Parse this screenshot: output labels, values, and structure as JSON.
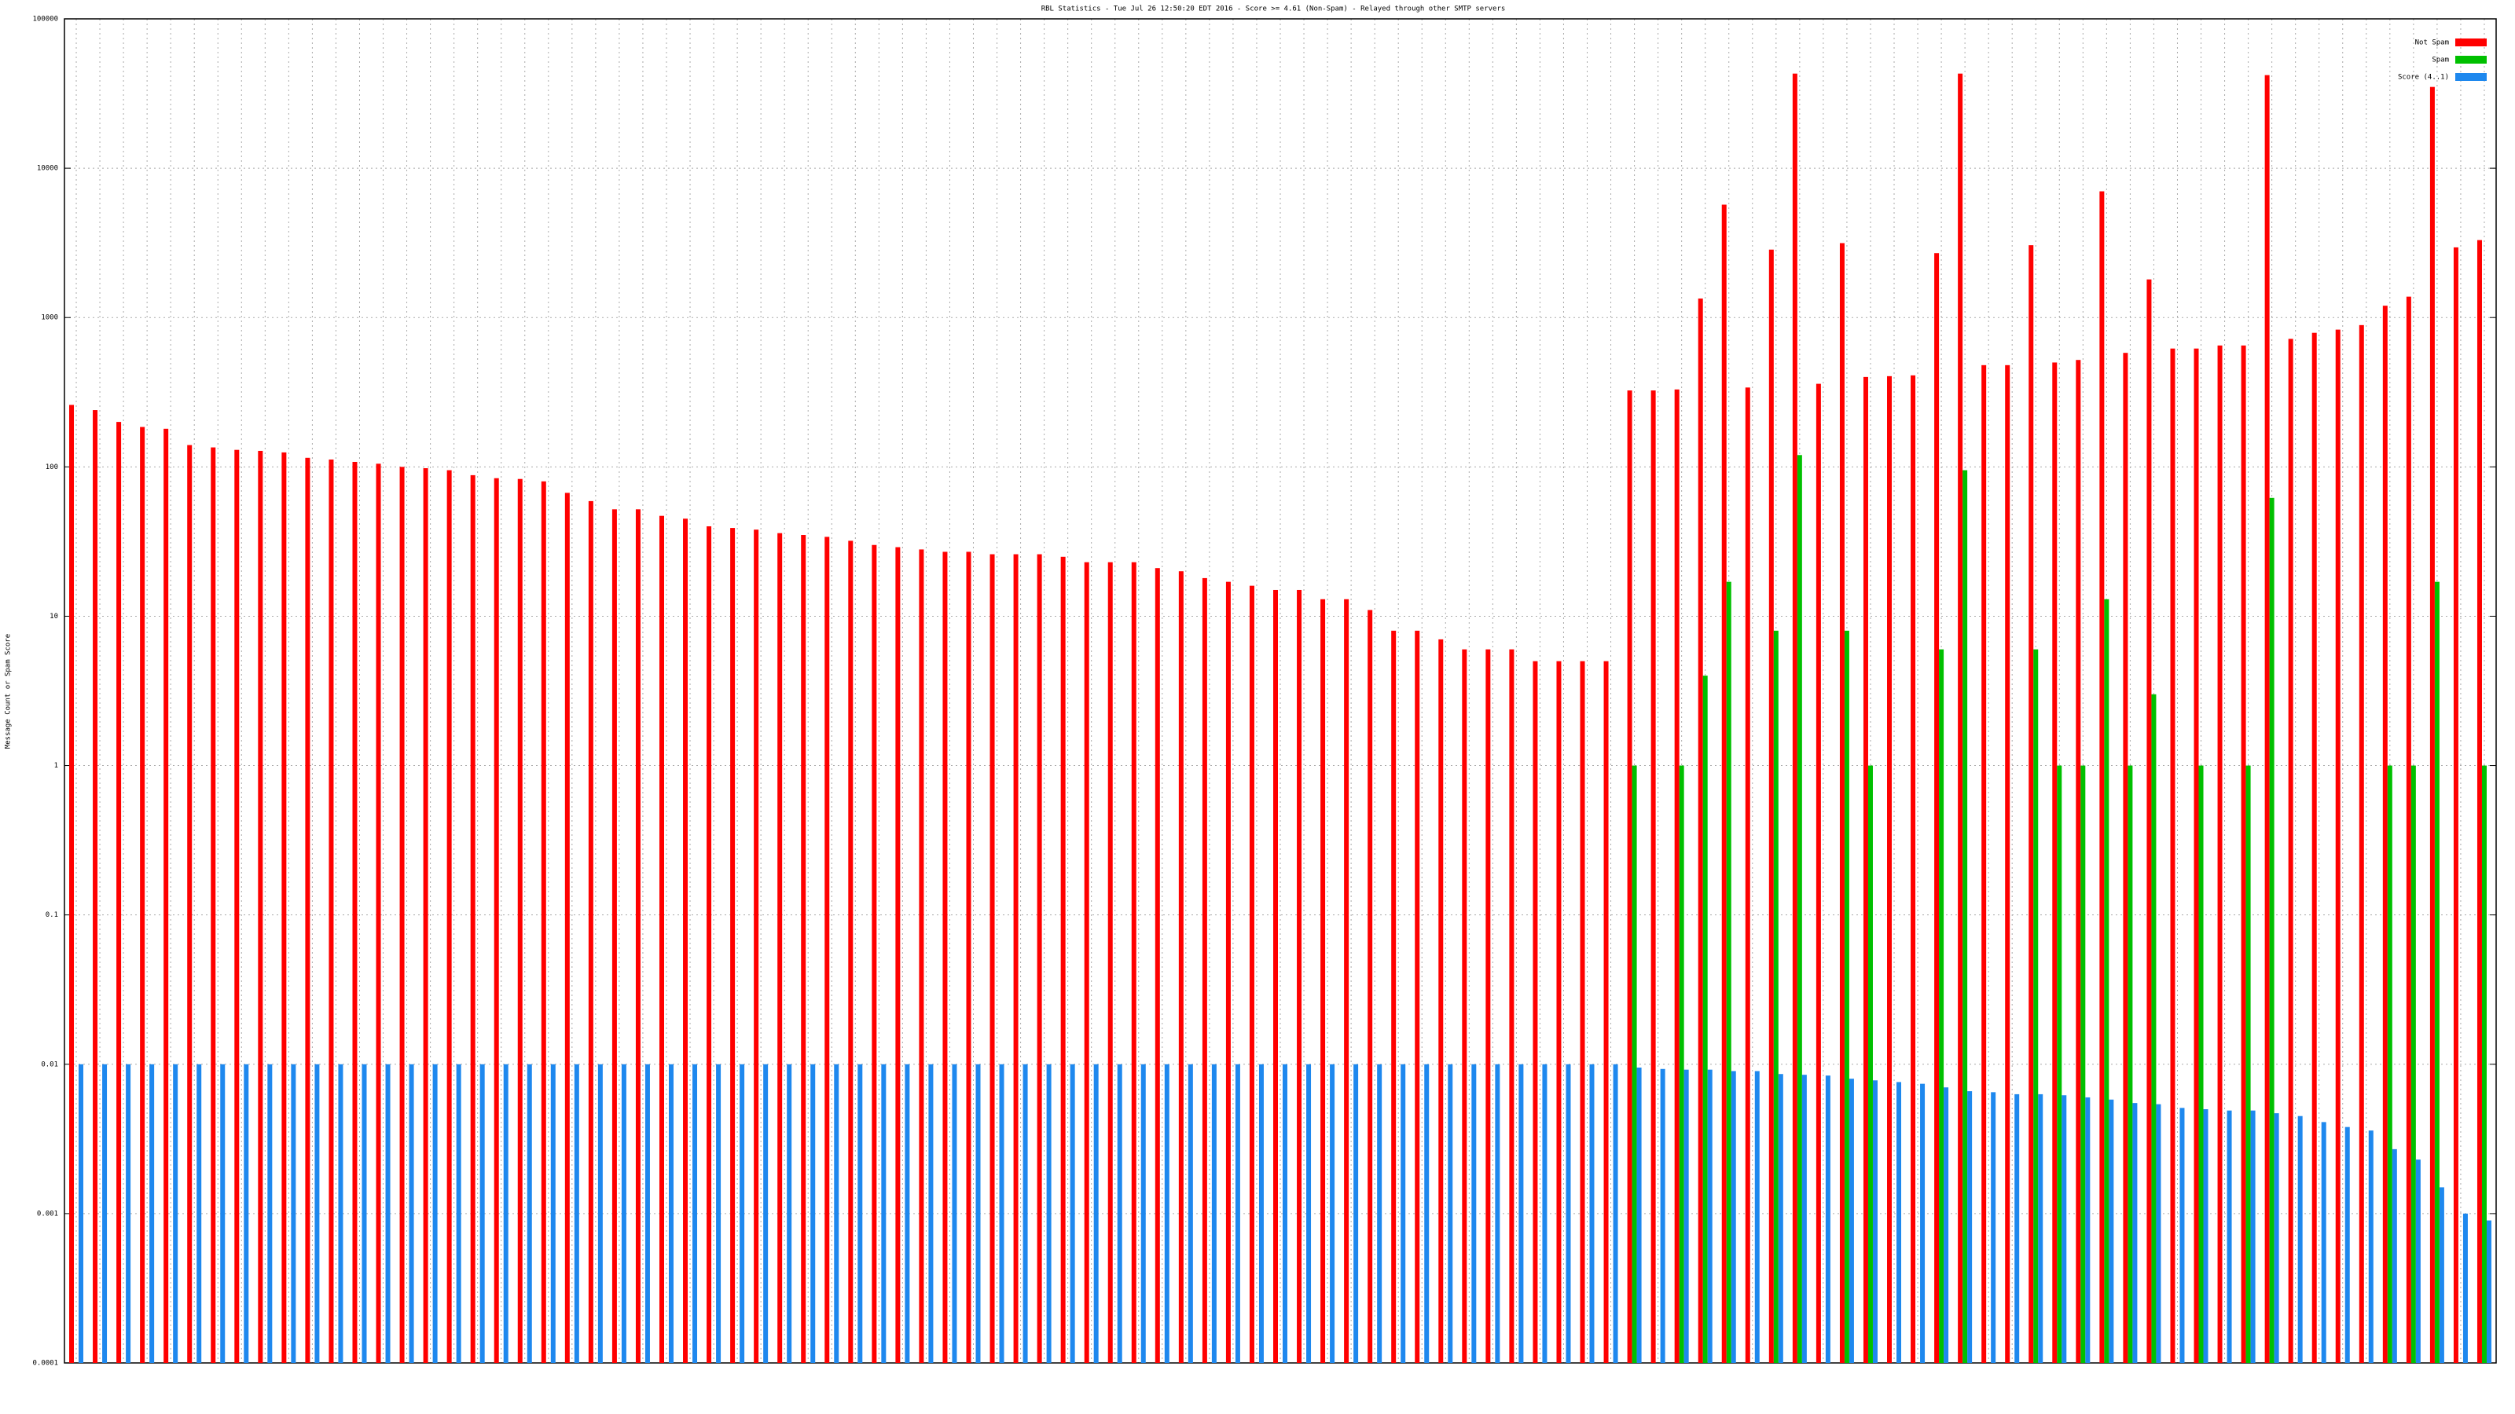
{
  "chart_data": {
    "type": "bar",
    "title": "RBL Statistics - Tue Jul 26 12:50:20 EDT 2016 - Score >= 4.61 (Non-Spam) - Relayed through other SMTP servers",
    "y_label": "Message Count or Spam Score",
    "log_y": true,
    "grid": true,
    "legend": "top-right",
    "categories": [
      null,
      null,
      null,
      null,
      null,
      null,
      null,
      null,
      null,
      null,
      null,
      null,
      null,
      null,
      null,
      null,
      null,
      null,
      null,
      null,
      null,
      null,
      null,
      null,
      null,
      null,
      null,
      null,
      null,
      null,
      null,
      null,
      null,
      null,
      null,
      null,
      null,
      null,
      null,
      null,
      null,
      null,
      null,
      null,
      null,
      null,
      null,
      null,
      null,
      null,
      null,
      null,
      null,
      null,
      null,
      null,
      null,
      null,
      null,
      null,
      null,
      null,
      null,
      null,
      null,
      null,
      null,
      null,
      null,
      null,
      null,
      null,
      null,
      null,
      null,
      null,
      null,
      null,
      null,
      null,
      null,
      null,
      null,
      null,
      null,
      null,
      null,
      null,
      null,
      null,
      null,
      null,
      null,
      null,
      null,
      null,
      null,
      null,
      null,
      null,
      null,
      null,
      null
    ],
    "series": [
      {
        "name": "Not Spam",
        "color": "#ff0000",
        "values": [
          260,
          240,
          200,
          185,
          180,
          140,
          135,
          130,
          128,
          125,
          115,
          112,
          108,
          105,
          100,
          98,
          95,
          88,
          84,
          83,
          80,
          67,
          59,
          52,
          52,
          47,
          45,
          40,
          39,
          38,
          36,
          35,
          34,
          32,
          30,
          29,
          28,
          27,
          27,
          26,
          26,
          26,
          25,
          23,
          23,
          23,
          21,
          20,
          18,
          17,
          16,
          15,
          15,
          13,
          13,
          11,
          8,
          8,
          7,
          6,
          6,
          6,
          5,
          5,
          5,
          5,
          325,
          325,
          330,
          1340,
          5700,
          340,
          2850,
          43000,
          360,
          3150,
          400,
          405,
          410,
          2700,
          43000,
          480,
          480,
          3050,
          500,
          520,
          7000,
          580,
          1800,
          620,
          620,
          650,
          650,
          42000,
          720,
          790,
          830,
          890,
          1200,
          1380,
          35000,
          2950,
          3300
        ]
      },
      {
        "name": "Spam",
        "color": "#00c000",
        "values": [
          null,
          null,
          null,
          null,
          null,
          null,
          null,
          null,
          null,
          null,
          null,
          null,
          null,
          null,
          null,
          null,
          null,
          null,
          null,
          null,
          null,
          null,
          null,
          null,
          null,
          null,
          null,
          null,
          null,
          null,
          null,
          null,
          null,
          null,
          null,
          null,
          null,
          null,
          null,
          null,
          null,
          null,
          null,
          null,
          null,
          null,
          null,
          null,
          null,
          null,
          null,
          null,
          null,
          null,
          null,
          null,
          null,
          null,
          null,
          null,
          null,
          null,
          null,
          null,
          null,
          null,
          1,
          null,
          1,
          4,
          17,
          null,
          8,
          120,
          null,
          8,
          1,
          null,
          null,
          6,
          95,
          null,
          null,
          6,
          1,
          1,
          13,
          1,
          3,
          null,
          1,
          null,
          1,
          62,
          null,
          null,
          null,
          null,
          1,
          1,
          17,
          null,
          1
        ]
      },
      {
        "name": "Score (4..1)",
        "color": "#1e88ee",
        "values": [
          0.01,
          0.01,
          0.01,
          0.01,
          0.01,
          0.01,
          0.01,
          0.01,
          0.01,
          0.01,
          0.01,
          0.01,
          0.01,
          0.01,
          0.01,
          0.01,
          0.01,
          0.01,
          0.01,
          0.01,
          0.01,
          0.01,
          0.01,
          0.01,
          0.01,
          0.01,
          0.01,
          0.01,
          0.01,
          0.01,
          0.01,
          0.01,
          0.01,
          0.01,
          0.01,
          0.01,
          0.01,
          0.01,
          0.01,
          0.01,
          0.01,
          0.01,
          0.01,
          0.01,
          0.01,
          0.01,
          0.01,
          0.01,
          0.01,
          0.01,
          0.01,
          0.01,
          0.01,
          0.01,
          0.01,
          0.01,
          0.01,
          0.01,
          0.01,
          0.01,
          0.01,
          0.01,
          0.01,
          0.01,
          0.01,
          0.01,
          0.0095,
          0.0093,
          0.0092,
          0.0092,
          0.009,
          0.009,
          0.0086,
          0.0085,
          0.0084,
          0.008,
          0.0078,
          0.0076,
          0.0074,
          0.007,
          0.0066,
          0.0065,
          0.0063,
          0.0063,
          0.0062,
          0.006,
          0.0058,
          0.0055,
          0.0054,
          0.0051,
          0.005,
          0.0049,
          0.0049,
          0.0047,
          0.0045,
          0.0041,
          0.0038,
          0.0036,
          0.0027,
          0.0023,
          0.0015,
          0.001,
          0.0009
        ]
      }
    ],
    "ylim": [
      0.0001,
      100000
    ],
    "yticks": [
      0.0001,
      0.001,
      0.01,
      0.1,
      1,
      10,
      100,
      1000,
      10000,
      100000
    ]
  }
}
